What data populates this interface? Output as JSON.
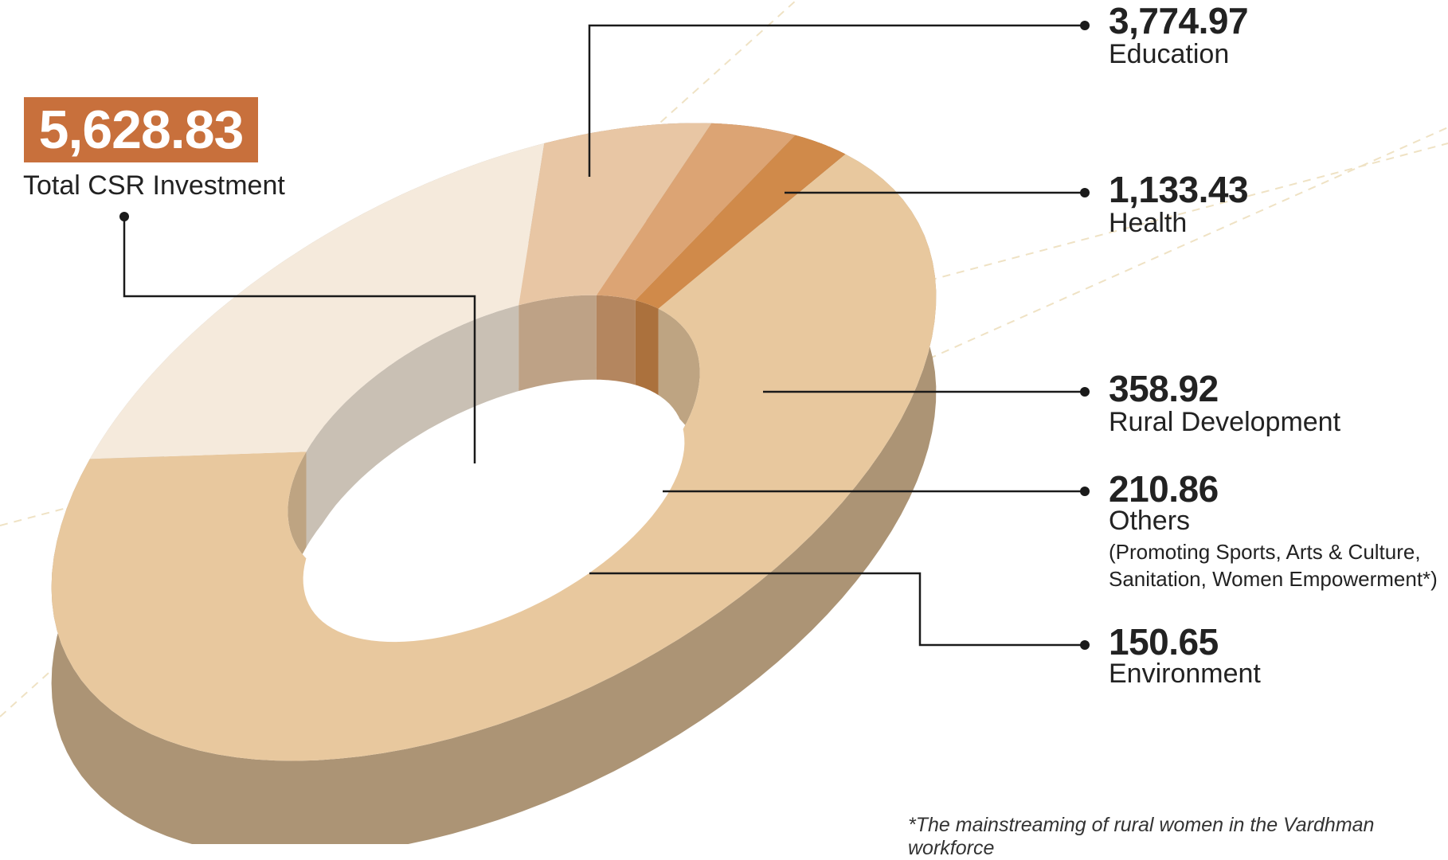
{
  "total": {
    "value": "5,628.83",
    "label": "Total CSR Investment"
  },
  "chart_data": {
    "type": "pie",
    "style": "3d-donut",
    "title": "",
    "total": 5628.83,
    "slices": [
      {
        "label": "Education",
        "value": 3774.97,
        "display": "3,774.97",
        "color": "#e8c89e"
      },
      {
        "label": "Health",
        "value": 1133.43,
        "display": "1,133.43",
        "color": "#f5eadc"
      },
      {
        "label": "Rural Development",
        "value": 358.92,
        "display": "358.92",
        "color": "#e8c6a4"
      },
      {
        "label": "Others",
        "value": 210.86,
        "display": "210.86",
        "color": "#dca474",
        "note": "(Promoting Sports, Arts & Culture, Sanitation, Women Empowerment*)"
      },
      {
        "label": "Environment",
        "value": 150.65,
        "display": "150.65",
        "color": "#d08a4a"
      }
    ]
  },
  "footnote": "*The mainstreaming of rural women in the Vardhman workforce"
}
